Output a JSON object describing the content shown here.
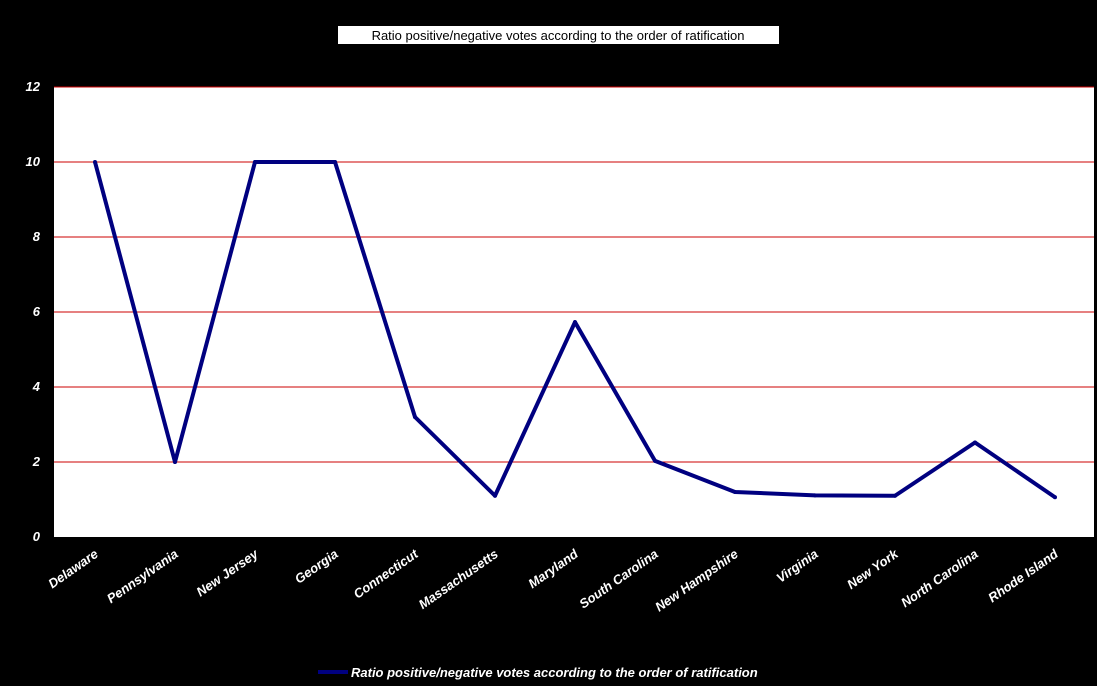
{
  "chart_data": {
    "type": "line",
    "title": "Ratio positive/negative votes according to the order of ratification",
    "xlabel": "",
    "ylabel": "",
    "ylim": [
      0,
      12
    ],
    "yticks": [
      "0",
      "2",
      "4",
      "6",
      "8",
      "10",
      "12"
    ],
    "grid": true,
    "legend_position": "bottom",
    "categories": [
      "Delaware",
      "Pennsylvania",
      "New Jersey",
      "Georgia",
      "Connecticut",
      "Massachusetts",
      "Maryland",
      "South Carolina",
      "New Hampshire",
      "Virginia",
      "New York",
      "North Carolina",
      "Rhode Island"
    ],
    "series": [
      {
        "name": "Ratio positive/negative votes according to the order of ratification",
        "values": [
          10,
          2,
          10,
          10,
          3.2,
          1.1,
          5.73,
          2.03,
          1.2,
          1.11,
          1.1,
          2.52,
          1.06
        ]
      }
    ],
    "colors": {
      "background": "#000000",
      "plot_area": "#ffffff",
      "gridline": "#cc0000",
      "series_line": "#000080",
      "text": "#ffffff"
    }
  }
}
